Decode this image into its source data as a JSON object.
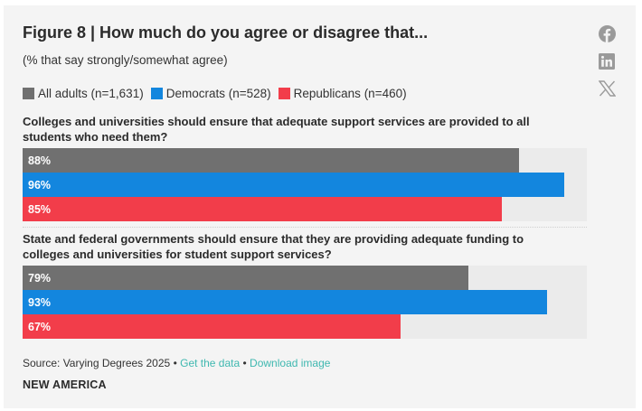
{
  "header": {
    "title": "Figure 8 | How much do you agree or disagree that...",
    "subtitle": "(% that say strongly/somewhat agree)"
  },
  "social": {
    "icons": [
      "facebook-icon",
      "linkedin-icon",
      "x-icon"
    ],
    "icon_color": "#9a9a9a"
  },
  "legend": [
    {
      "label": "All adults (n=1,631)",
      "color": "#707070"
    },
    {
      "label": "Democrats (n=528)",
      "color": "#1386de"
    },
    {
      "label": "Republicans (n=460)",
      "color": "#f23d4a"
    }
  ],
  "chart_data": {
    "type": "bar",
    "orientation": "horizontal",
    "title": "Figure 8 | How much do you agree or disagree that...",
    "subtitle": "(% that say strongly/somewhat agree)",
    "xlim": [
      0,
      100
    ],
    "unit": "%",
    "grid": false,
    "legend_position": "top-left",
    "categories": [
      "Colleges and universities should ensure that adequate support services are provided to all students who need them?",
      "State and federal governments should ensure that they are providing adequate funding to colleges and universities for student support services?"
    ],
    "series": [
      {
        "name": "All adults (n=1,631)",
        "color": "#707070",
        "values": [
          88,
          79
        ],
        "labels": [
          "88%",
          "79%"
        ]
      },
      {
        "name": "Democrats (n=528)",
        "color": "#1386de",
        "values": [
          96,
          93
        ],
        "labels": [
          "96%",
          "93%"
        ]
      },
      {
        "name": "Republicans (n=460)",
        "color": "#f23d4a",
        "values": [
          85,
          67
        ],
        "labels": [
          "85%",
          "67%"
        ]
      }
    ]
  },
  "footer": {
    "source": "Source: Varying Degrees 2025",
    "bullet": "•",
    "get_data": "Get the data",
    "download_image": "Download image",
    "brand": "NEW AMERICA"
  }
}
